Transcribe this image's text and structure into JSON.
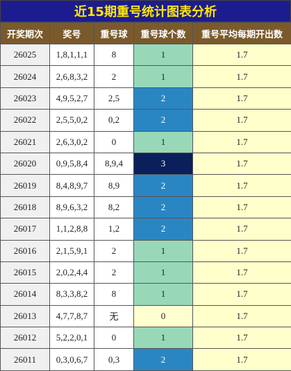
{
  "header": {
    "title": "近15期重号统计图表分析"
  },
  "table": {
    "columns": [
      "开奖期次",
      "奖号",
      "重号球",
      "重号球个数",
      "重号平均每期开出数"
    ],
    "rows": [
      [
        "26025",
        "1,8,1,1,1",
        "8",
        1,
        1.7
      ],
      [
        "26024",
        "2,6,8,3,2",
        "2",
        1,
        1.7
      ],
      [
        "26023",
        "4,9,5,2,7",
        "2,5",
        2,
        1.7
      ],
      [
        "26022",
        "2,5,5,0,2",
        "0,2",
        2,
        1.7
      ],
      [
        "26021",
        "2,6,3,0,2",
        "0",
        1,
        1.7
      ],
      [
        "26020",
        "0,9,5,8,4",
        "8,9,4",
        3,
        1.7
      ],
      [
        "26019",
        "8,4,8,9,7",
        "8,9",
        2,
        1.7
      ],
      [
        "26018",
        "8,9,6,3,2",
        "8,2",
        2,
        1.7
      ],
      [
        "26017",
        "1,1,2,8,8",
        "1,2",
        2,
        1.7
      ],
      [
        "26016",
        "2,1,5,9,1",
        "2",
        1,
        1.7
      ],
      [
        "26015",
        "2,0,2,4,4",
        "2",
        1,
        1.7
      ],
      [
        "26014",
        "8,3,3,8,2",
        "8",
        1,
        1.7
      ],
      [
        "26013",
        "4,7,7,8,7",
        "无",
        0,
        1.7
      ],
      [
        "26012",
        "5,2,2,0,1",
        "0",
        1,
        1.7
      ],
      [
        "26011",
        "0,3,0,6,7",
        "0,3",
        2,
        1.7
      ]
    ]
  }
}
